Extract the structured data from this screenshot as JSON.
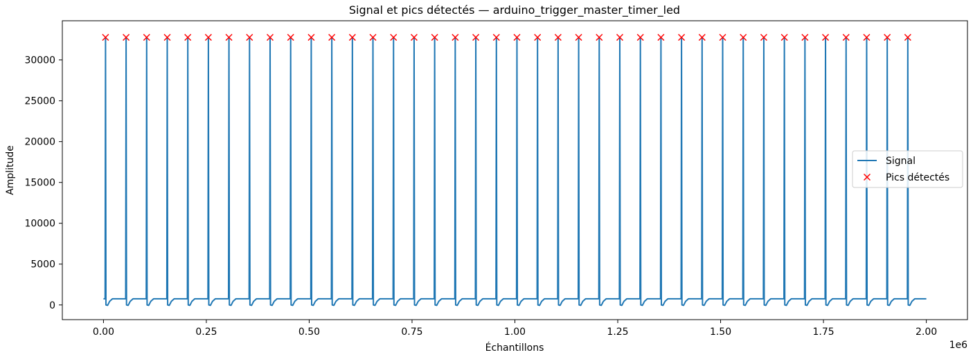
{
  "chart_data": {
    "type": "line",
    "title": "Signal et pics détectés — arduino_trigger_master_timer_led",
    "xlabel": "Échantillons",
    "ylabel": "Amplitude",
    "x_offset_label": "1e6",
    "xlim": [
      -0.1,
      2.1
    ],
    "ylim": [
      -1800,
      34800
    ],
    "x_ticks": [
      0.0,
      0.25,
      0.5,
      0.75,
      1.0,
      1.25,
      1.5,
      1.75,
      2.0
    ],
    "x_tick_labels": [
      "0.00",
      "0.25",
      "0.50",
      "0.75",
      "1.00",
      "1.25",
      "1.50",
      "1.75",
      "2.00"
    ],
    "y_ticks": [
      0,
      5000,
      10000,
      15000,
      20000,
      25000,
      30000
    ],
    "y_tick_labels": [
      "0",
      "5000",
      "10000",
      "15000",
      "20000",
      "25000",
      "30000"
    ],
    "legend_position": "center-right",
    "grid": false,
    "series": [
      {
        "name": "Signal",
        "color": "#1f77b4",
        "baseline": 750,
        "peak": 32767,
        "x_end": 2.0
      },
      {
        "name": "Pics détectés",
        "color": "#ff0000",
        "marker": "x",
        "x": [
          0.005,
          0.055,
          0.105,
          0.155,
          0.205,
          0.255,
          0.305,
          0.355,
          0.405,
          0.455,
          0.505,
          0.555,
          0.605,
          0.655,
          0.705,
          0.755,
          0.805,
          0.855,
          0.905,
          0.955,
          1.005,
          1.055,
          1.105,
          1.155,
          1.205,
          1.255,
          1.305,
          1.355,
          1.405,
          1.455,
          1.505,
          1.555,
          1.605,
          1.655,
          1.705,
          1.755,
          1.805,
          1.855,
          1.905,
          1.955
        ],
        "y": [
          32767,
          32767,
          32767,
          32767,
          32767,
          32767,
          32767,
          32767,
          32767,
          32767,
          32767,
          32767,
          32767,
          32767,
          32767,
          32767,
          32767,
          32767,
          32767,
          32767,
          32767,
          32767,
          32767,
          32767,
          32767,
          32767,
          32767,
          32767,
          32767,
          32767,
          32767,
          32767,
          32767,
          32767,
          32767,
          32767,
          32767,
          32767,
          32767,
          32767
        ]
      }
    ]
  }
}
